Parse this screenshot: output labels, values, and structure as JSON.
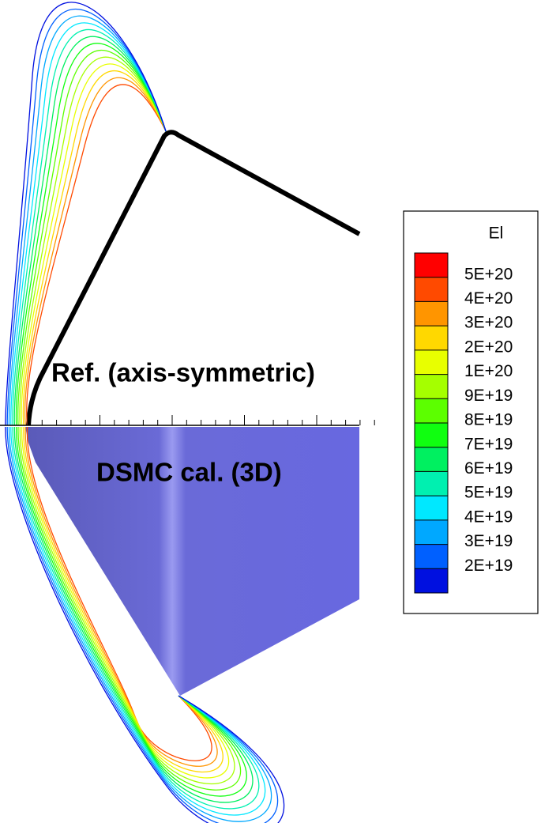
{
  "chart_data": {
    "type": "contour",
    "annotations": [
      "Ref. (axis-symmetric)",
      "DSMC cal. (3D)"
    ],
    "legend": {
      "title": "El",
      "levels": [
        {
          "value": 5e+20,
          "label": "5E+20"
        },
        {
          "value": 4e+20,
          "label": "4E+20"
        },
        {
          "value": 3e+20,
          "label": "3E+20"
        },
        {
          "value": 2e+20,
          "label": "2E+20"
        },
        {
          "value": 1e+20,
          "label": "1E+20"
        },
        {
          "value": 9e+19,
          "label": "9E+19"
        },
        {
          "value": 8e+19,
          "label": "8E+19"
        },
        {
          "value": 7e+19,
          "label": "7E+19"
        },
        {
          "value": 6e+19,
          "label": "6E+19"
        },
        {
          "value": 5e+19,
          "label": "5E+19"
        },
        {
          "value": 4e+19,
          "label": "4E+19"
        },
        {
          "value": 3e+19,
          "label": "3E+19"
        },
        {
          "value": 2e+19,
          "label": "2E+19"
        }
      ],
      "colors": [
        "#ff0000",
        "#ff4a00",
        "#ff9500",
        "#ffd800",
        "#e8ff00",
        "#a5ff00",
        "#5cff00",
        "#10ff10",
        "#00f060",
        "#00f0b0",
        "#00e8ff",
        "#00a8ff",
        "#0060ff",
        "#0010e0"
      ]
    }
  }
}
